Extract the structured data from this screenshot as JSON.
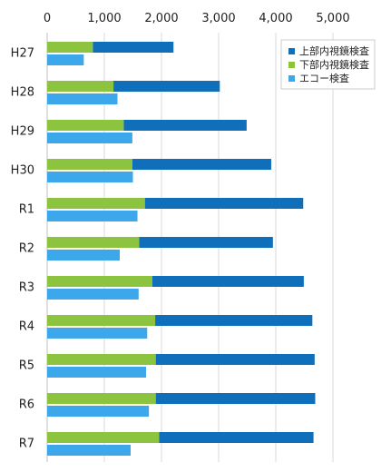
{
  "chart_data": {
    "type": "bar",
    "orientation": "horizontal",
    "stacked_series": [
      "上部内視鏡検査",
      "下部内視鏡検査"
    ],
    "categories": [
      "H27",
      "H28",
      "H29",
      "H30",
      "R1",
      "R2",
      "R3",
      "R4",
      "R5",
      "R6",
      "R7"
    ],
    "series": [
      {
        "name": "上部内視鏡検査",
        "color": "#0f6fba",
        "values": [
          1410,
          1860,
          2150,
          2430,
          2770,
          2340,
          2650,
          2750,
          2780,
          2790,
          2700
        ]
      },
      {
        "name": "下部内視鏡検査",
        "color": "#8cc43f",
        "values": [
          800,
          1160,
          1340,
          1490,
          1710,
          1610,
          1840,
          1890,
          1900,
          1900,
          1960
        ]
      },
      {
        "name": "エコー検査",
        "color": "#3ca7ea",
        "values": [
          640,
          1230,
          1490,
          1500,
          1580,
          1270,
          1600,
          1750,
          1730,
          1780,
          1460
        ]
      }
    ],
    "x_ticks": [
      "0",
      "1,000",
      "2,000",
      "3,000",
      "4,000",
      "5,000"
    ],
    "xlim": [
      0,
      5000
    ],
    "grid": true,
    "legend_position": "top-right",
    "title": "",
    "xlabel": "",
    "ylabel": ""
  }
}
